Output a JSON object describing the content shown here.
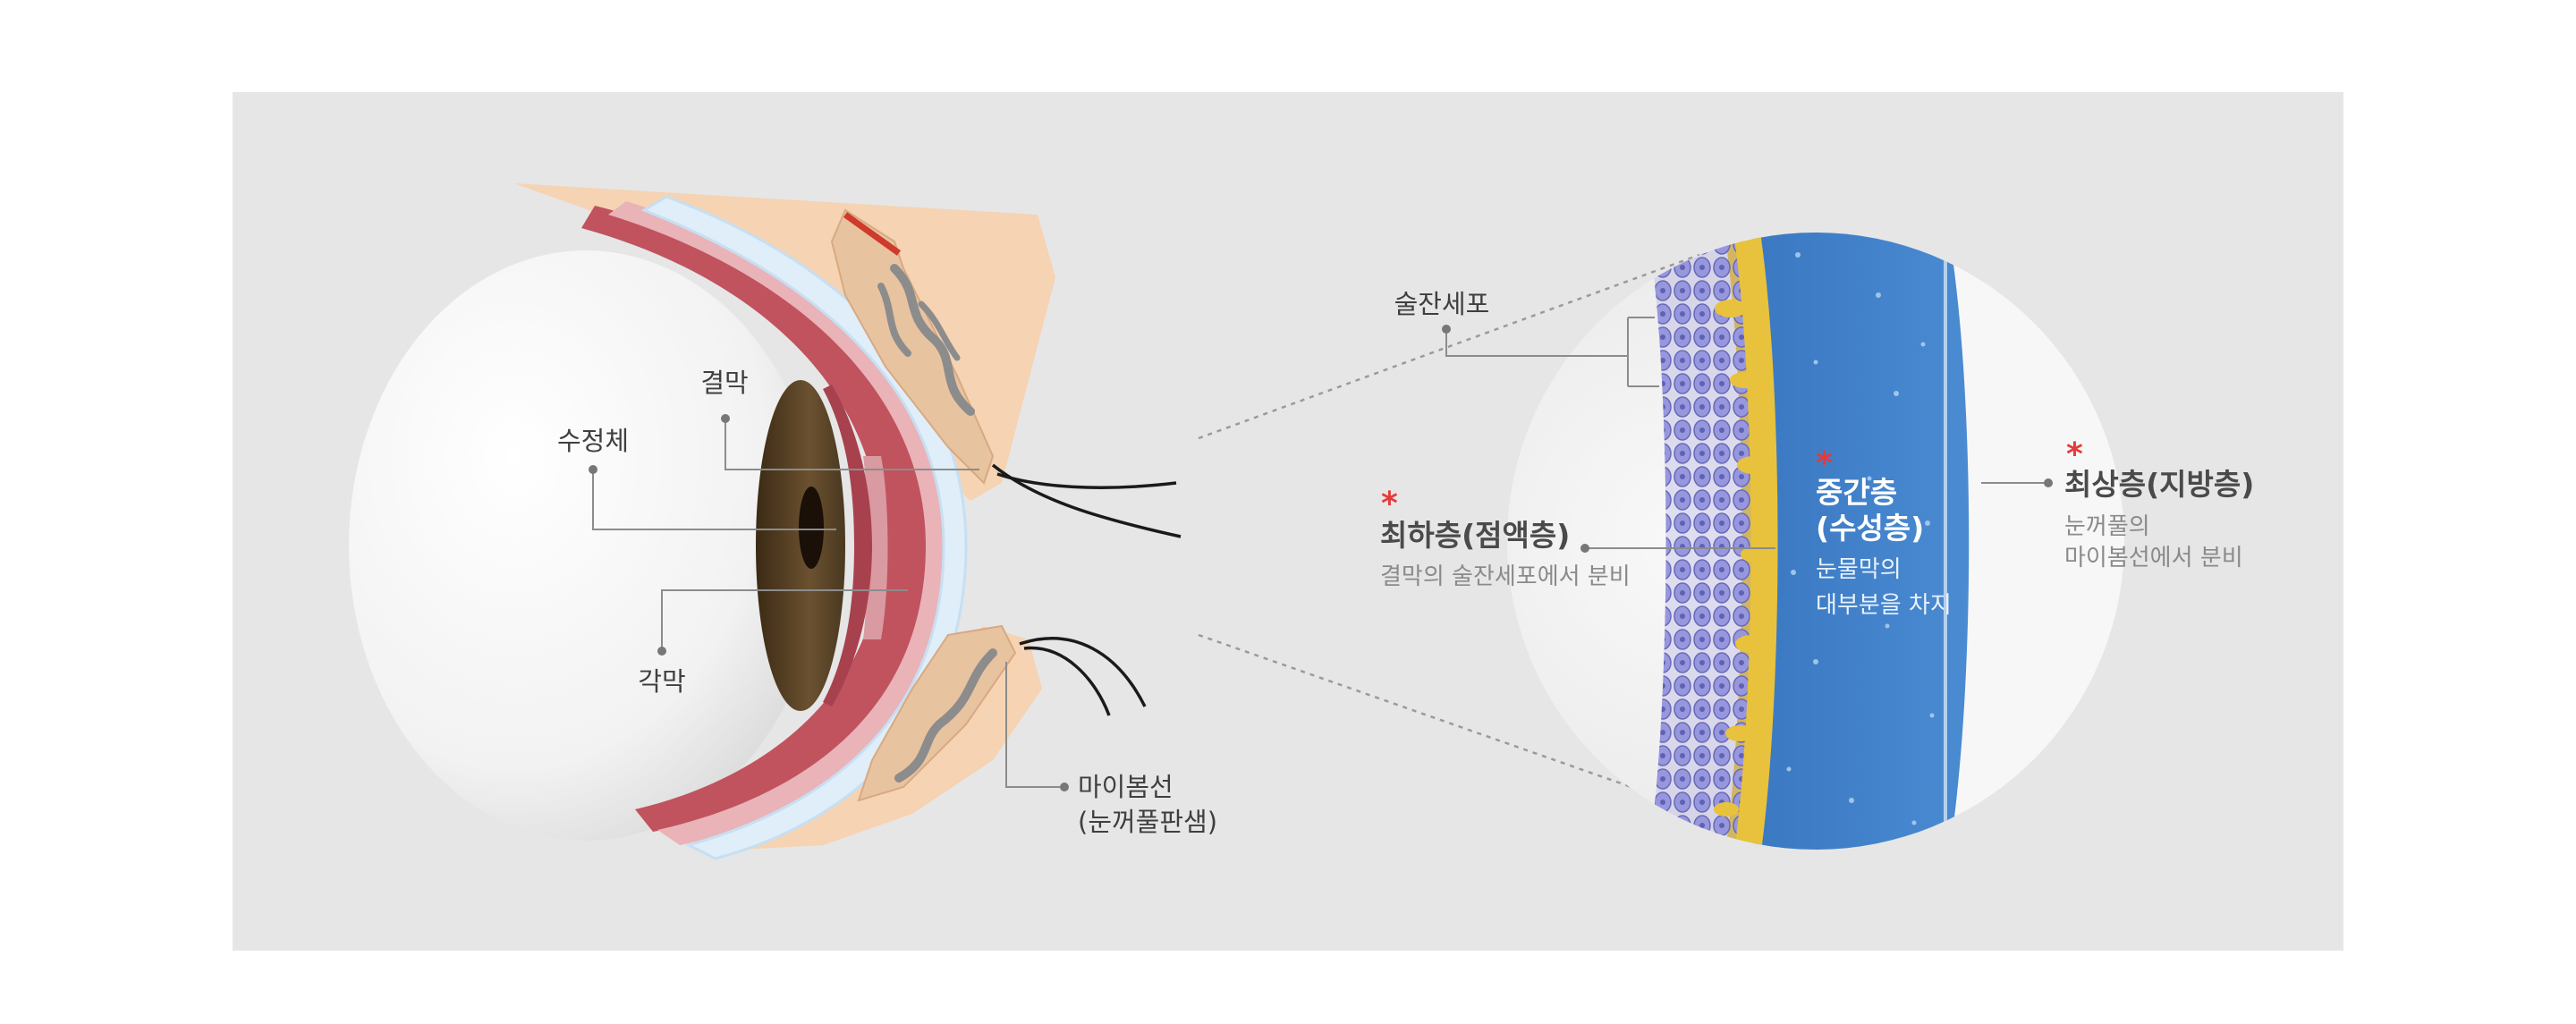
{
  "eye_labels": {
    "conjunctiva": "결막",
    "lens": "수정체",
    "cornea": "각막",
    "meibomian_gland_line1": "마이봄선",
    "meibomian_gland_line2": "(눈꺼풀판샘)"
  },
  "tear_film": {
    "goblet_cells": "술잔세포",
    "mucin_layer": {
      "title": "최하층(점액층)",
      "desc": "결막의 술잔세포에서 분비",
      "marker": "*"
    },
    "aqueous_layer": {
      "title_line1": "중간층",
      "title_line2": "(수성층)",
      "desc_line1": "눈물막의",
      "desc_line2": "대부분을 차지",
      "marker": "*"
    },
    "lipid_layer": {
      "title": "최상층(지방층)",
      "desc_line1": "눈꺼풀의",
      "desc_line2": "마이봄선에서 분비",
      "marker": "*"
    }
  },
  "colors": {
    "panel_bg": "#e6e6e6",
    "aqueous_blue": "#3d7fc8",
    "mucin_yellow": "#e8c23c",
    "goblet_purple": "#8f8fd6",
    "iris_brown": "#5a4326",
    "conjunctiva_red": "#c0535e",
    "eyelid_skin": "#f2c9a4",
    "marker_red": "#e53a3a"
  }
}
